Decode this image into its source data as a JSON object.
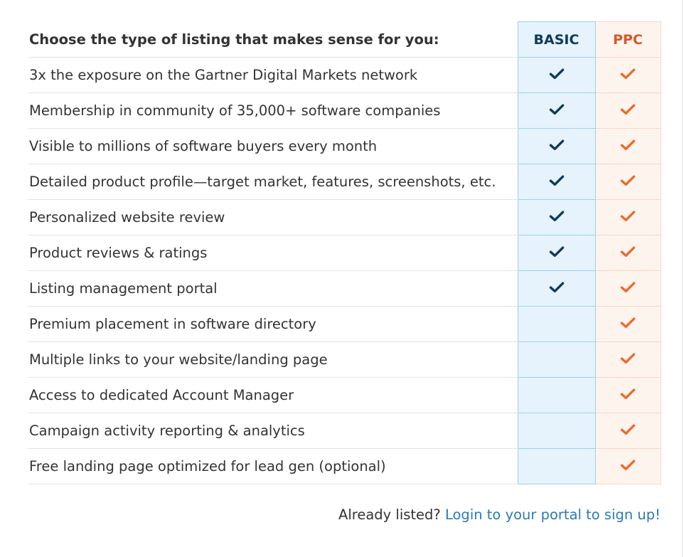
{
  "header": {
    "title": "Choose the type of listing that makes sense for you:",
    "plans": [
      {
        "label": "BASIC",
        "color": "#0f3a5c"
      },
      {
        "label": "PPC",
        "color": "#d55a27"
      }
    ]
  },
  "rows": [
    {
      "feature": "3x the exposure on the Gartner Digital Markets network",
      "basic": true,
      "ppc": true
    },
    {
      "feature": "Membership in community of 35,000+ software companies",
      "basic": true,
      "ppc": true
    },
    {
      "feature": "Visible to millions of software buyers every month",
      "basic": true,
      "ppc": true
    },
    {
      "feature": "Detailed product profile—target market, features, screenshots, etc.",
      "basic": true,
      "ppc": true
    },
    {
      "feature": "Personalized website review",
      "basic": true,
      "ppc": true
    },
    {
      "feature": "Product reviews & ratings",
      "basic": true,
      "ppc": true
    },
    {
      "feature": "Listing management portal",
      "basic": true,
      "ppc": true
    },
    {
      "feature": "Premium placement in software directory",
      "basic": false,
      "ppc": true
    },
    {
      "feature": "Multiple links to your website/landing page",
      "basic": false,
      "ppc": true
    },
    {
      "feature": "Access to dedicated Account Manager",
      "basic": false,
      "ppc": true
    },
    {
      "feature": "Campaign activity reporting & analytics",
      "basic": false,
      "ppc": true
    },
    {
      "feature": "Free landing page optimized for lead gen (optional)",
      "basic": false,
      "ppc": true
    }
  ],
  "icons": {
    "basic_check": "check-icon",
    "ppc_check": "check-icon",
    "basic_check_color": "#0f3a5c",
    "ppc_check_color": "#ee6a2c"
  },
  "footer": {
    "prefix": "Already listed?",
    "link_label": "Login to your portal to sign up!"
  }
}
